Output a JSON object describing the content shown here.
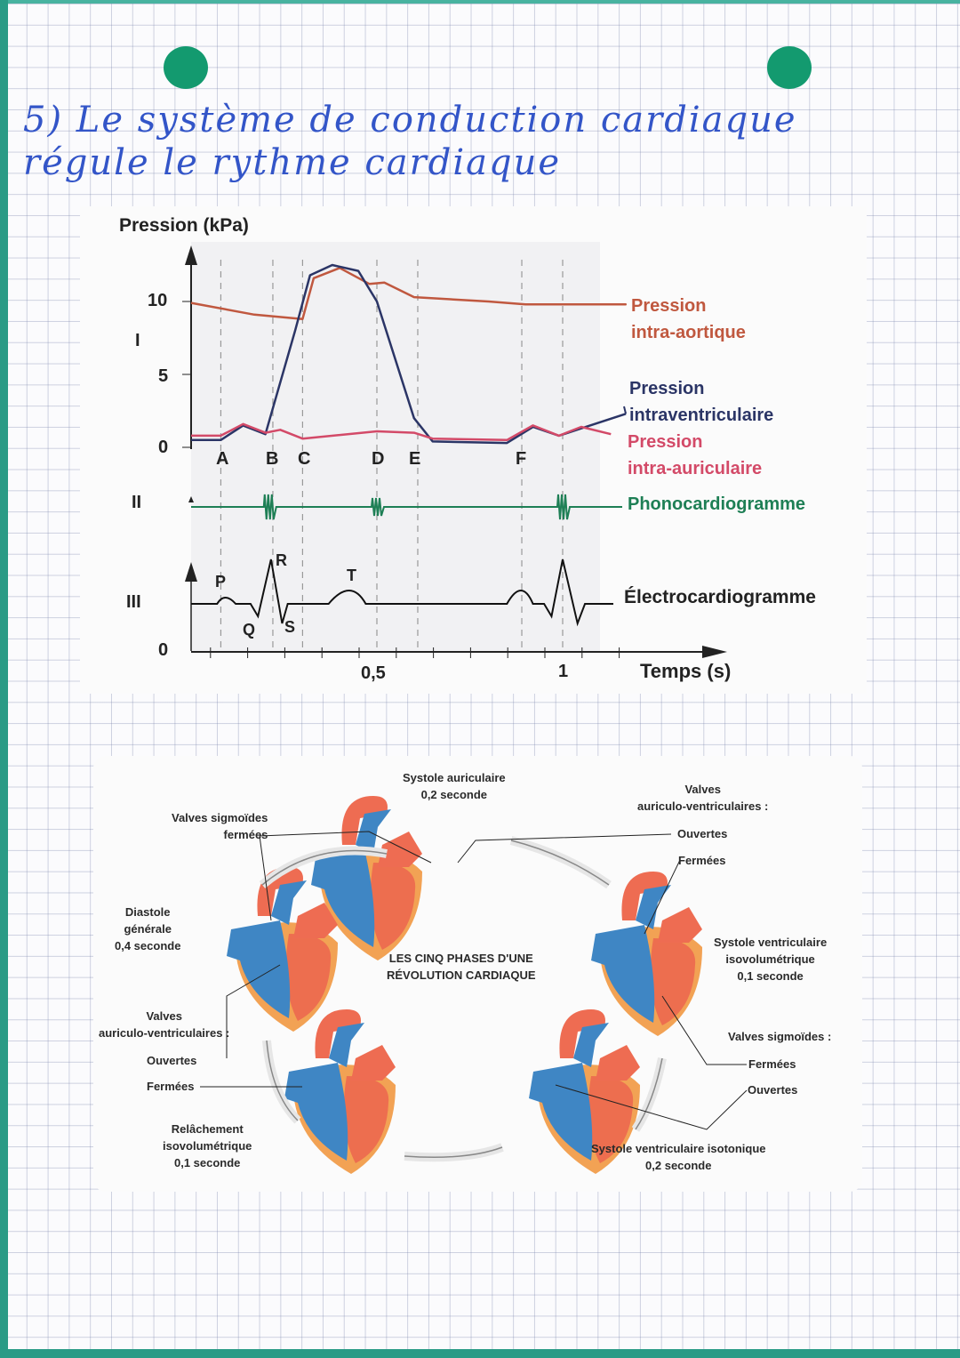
{
  "heading": {
    "line1": "5) Le système de conduction cardiaque",
    "line2": "régule le rythme cardiaque"
  },
  "colors": {
    "page_edge": "#2a9b86",
    "punch_holes": "#139a6f",
    "handwriting": "#3355c8",
    "aortic": "#c0583f",
    "ventricular": "#2b3566",
    "atrial": "#d34a68",
    "phono": "#1e7f55",
    "ecg": "#111111"
  },
  "chart": {
    "y_axis_title": "Pression (kPa)",
    "y_ticks": [
      "10",
      "5",
      "0"
    ],
    "x_ticks": [
      "0,5",
      "1"
    ],
    "x_axis_title": "Temps (s)",
    "origin_label": "0",
    "section_labels": [
      "I",
      "II",
      "III"
    ],
    "event_labels": [
      "A",
      "B",
      "C",
      "D",
      "E",
      "F"
    ],
    "ecg_labels": [
      "P",
      "Q",
      "R",
      "S",
      "T"
    ],
    "legend": {
      "aortic": [
        "Pression",
        "intra-aortique"
      ],
      "ventricular": [
        "Pression",
        "intraventriculaire"
      ],
      "atrial": [
        "Pression",
        "intra-auriculaire"
      ],
      "phono": "Phonocardiogramme",
      "ecg": "Électrocardiogramme"
    }
  },
  "chart_data": {
    "type": "line",
    "xlabel": "Temps (s)",
    "ylabel": "Pression (kPa)",
    "xlim": [
      0,
      1.17
    ],
    "ylim": [
      0,
      13
    ],
    "event_times": {
      "A": 0.08,
      "B": 0.22,
      "C": 0.3,
      "D": 0.5,
      "E": 0.61,
      "F": 0.89
    },
    "series": [
      {
        "name": "Pression intra-aortique",
        "x": [
          0,
          0.17,
          0.3,
          0.33,
          0.4,
          0.48,
          0.52,
          0.6,
          0.8,
          0.9,
          1.17
        ],
        "y": [
          9.9,
          9.1,
          8.8,
          11.6,
          12.3,
          11.2,
          11.3,
          10.3,
          10,
          9.8,
          9.8
        ]
      },
      {
        "name": "Pression intraventriculaire",
        "x": [
          0,
          0.08,
          0.14,
          0.2,
          0.28,
          0.32,
          0.38,
          0.45,
          0.5,
          0.6,
          0.65,
          0.85,
          0.92,
          0.99,
          1.05,
          1.17
        ],
        "y": [
          0.5,
          0.5,
          1.5,
          0.9,
          8,
          11.8,
          12.5,
          12.1,
          10,
          2,
          0.4,
          0.3,
          1.4,
          0.8,
          1.3,
          2.3
        ]
      },
      {
        "name": "Pression intra-auriculaire",
        "x": [
          0,
          0.08,
          0.14,
          0.2,
          0.24,
          0.3,
          0.5,
          0.6,
          0.65,
          0.85,
          0.92,
          0.99,
          1.05,
          1.13
        ],
        "y": [
          0.8,
          0.8,
          1.6,
          1.0,
          1.2,
          0.6,
          1.1,
          1.0,
          0.6,
          0.5,
          1.5,
          0.8,
          1.4,
          0.9
        ]
      }
    ]
  },
  "diagram": {
    "title": [
      "LES CINQ PHASES D'UNE",
      "RÉVOLUTION CARDIAQUE"
    ],
    "phases": [
      {
        "name": "Systole auriculaire",
        "duration": "0,2 seconde"
      },
      {
        "name": "Systole ventriculaire isovolumétrique",
        "lines": [
          "Systole ventriculaire",
          "isovolumétrique",
          "0,1 seconde"
        ]
      },
      {
        "name": "Systole ventriculaire isotonique",
        "duration": "0,2 seconde"
      },
      {
        "name": "Relâchement isovolumétrique",
        "lines": [
          "Relâchement",
          "isovolumétrique",
          "0,1 seconde"
        ]
      },
      {
        "name": "Diastole générale",
        "lines": [
          "Diastole",
          "générale",
          "0,4 seconde"
        ]
      }
    ],
    "labels": {
      "sigmoid_closed": [
        "Valves sigmoïdes",
        "fermées"
      ],
      "av_right_title": [
        "Valves",
        "auriculo-ventriculaires :"
      ],
      "av_right_open": "Ouvertes",
      "av_right_closed": "Fermées",
      "sigmoid_right_title": "Valves sigmoïdes :",
      "sigmoid_right_closed": "Fermées",
      "sigmoid_right_open": "Ouvertes",
      "av_left_title": [
        "Valves",
        "auriculo-ventriculaires :"
      ],
      "av_left_open": "Ouvertes",
      "av_left_closed": "Fermées"
    }
  }
}
